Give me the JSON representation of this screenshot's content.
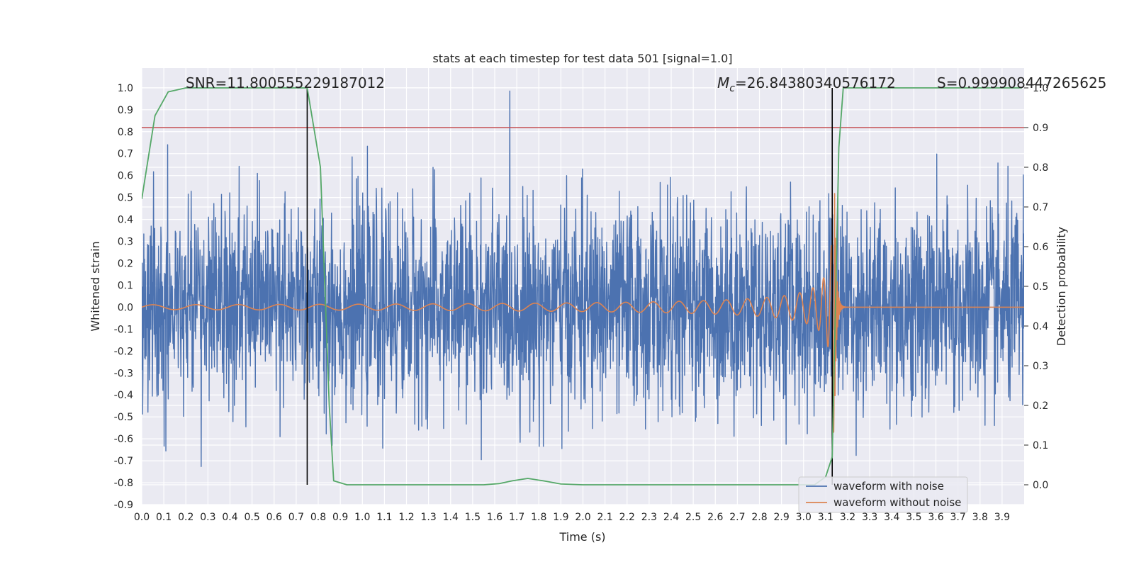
{
  "chart_data": {
    "type": "line",
    "title": "stats at each timestep for test data 501 [signal=1.0]",
    "xlabel": "Time (s)",
    "ylabel": "Whitened strain",
    "y2label": "Detection probability",
    "xlim": [
      0.0,
      4.0
    ],
    "ylim": [
      -0.9,
      1.09
    ],
    "y2lim": [
      -0.05,
      1.05
    ],
    "xticks": [
      "0.0",
      "0.1",
      "0.2",
      "0.3",
      "0.4",
      "0.5",
      "0.6",
      "0.7",
      "0.8",
      "0.9",
      "1.0",
      "1.1",
      "1.2",
      "1.3",
      "1.4",
      "1.5",
      "1.6",
      "1.7",
      "1.8",
      "1.9",
      "2.0",
      "2.1",
      "2.2",
      "2.3",
      "2.4",
      "2.5",
      "2.6",
      "2.7",
      "2.8",
      "2.9",
      "3.0",
      "3.1",
      "3.2",
      "3.3",
      "3.4",
      "3.5",
      "3.6",
      "3.7",
      "3.8",
      "3.9"
    ],
    "yticks": [
      "1.0",
      "0.9",
      "0.8",
      "0.7",
      "0.6",
      "0.5",
      "0.4",
      "0.3",
      "0.2",
      "0.1",
      "0.0",
      "-0.1",
      "-0.2",
      "-0.3",
      "-0.4",
      "-0.5",
      "-0.6",
      "-0.7",
      "-0.8",
      "-0.9"
    ],
    "y2ticks": [
      "1.0",
      "0.9",
      "0.8",
      "0.7",
      "0.6",
      "0.5",
      "0.4",
      "0.3",
      "0.2",
      "0.1",
      "0.0"
    ],
    "grid": true,
    "legend_position": "bottom-right",
    "annotations": {
      "snr": "SNR=11.800555229187012",
      "mc_symbol": "M",
      "mc_sub": "c",
      "mc_value": "=26.84380340576172",
      "s": "S=0.999908447265625"
    },
    "vlines_x": [
      0.75,
      3.13
    ],
    "threshold_line": {
      "axis": "right",
      "y": 0.9,
      "color": "#c44e52"
    },
    "series": [
      {
        "name": "waveform with noise",
        "axis": "left",
        "color": "#4c72b0",
        "kind": "noise",
        "approx_envelope": [
          -0.8,
          1.0
        ]
      },
      {
        "name": "waveform without noise",
        "axis": "left",
        "color": "#dd8452",
        "kind": "chirp",
        "merger_time": 3.14,
        "peak_amplitude": 0.58
      },
      {
        "name": "",
        "axis": "right",
        "color": "#55a868",
        "x": [
          0.0,
          0.06,
          0.12,
          0.2,
          0.3,
          0.5,
          0.7,
          0.75,
          0.81,
          0.85,
          0.87,
          0.93,
          1.0,
          1.2,
          1.4,
          1.55,
          1.62,
          1.68,
          1.75,
          1.82,
          1.9,
          2.0,
          2.3,
          2.6,
          2.9,
          3.05,
          3.1,
          3.13,
          3.16,
          3.18,
          3.3,
          3.6,
          3.99
        ],
        "y": [
          0.72,
          0.93,
          0.99,
          1.0,
          1.0,
          1.0,
          1.0,
          1.0,
          0.8,
          0.2,
          0.01,
          0.0,
          0.0,
          0.0,
          0.0,
          0.0,
          0.003,
          0.01,
          0.016,
          0.01,
          0.002,
          0.0,
          0.0,
          0.0,
          0.0,
          0.0,
          0.02,
          0.07,
          0.85,
          1.0,
          1.0,
          1.0,
          1.0
        ]
      }
    ]
  }
}
